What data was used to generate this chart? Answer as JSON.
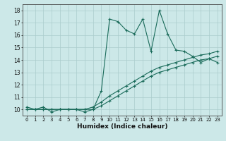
{
  "xlabel": "Humidex (Indice chaleur)",
  "xlim": [
    -0.5,
    23.5
  ],
  "ylim": [
    9.5,
    18.5
  ],
  "yticks": [
    10,
    11,
    12,
    13,
    14,
    15,
    16,
    17,
    18
  ],
  "xticks": [
    0,
    1,
    2,
    3,
    4,
    5,
    6,
    7,
    8,
    9,
    10,
    11,
    12,
    13,
    14,
    15,
    16,
    17,
    18,
    19,
    20,
    21,
    22,
    23
  ],
  "bg_color": "#cce8e8",
  "line_color": "#1a6b5a",
  "grid_color": "#aacccc",
  "series1_x": [
    0,
    1,
    2,
    3,
    4,
    5,
    6,
    7,
    8,
    9,
    10,
    11,
    12,
    13,
    14,
    15,
    16,
    17,
    18,
    19,
    20,
    21,
    22,
    23
  ],
  "series1_y": [
    10.2,
    10.0,
    10.2,
    9.8,
    10.0,
    10.0,
    10.0,
    9.8,
    10.0,
    11.5,
    17.3,
    17.1,
    16.4,
    16.1,
    17.3,
    14.7,
    18.0,
    16.1,
    14.8,
    14.7,
    14.3,
    13.8,
    14.1,
    13.8
  ],
  "series2_x": [
    0,
    1,
    2,
    3,
    4,
    5,
    6,
    7,
    8,
    9,
    10,
    11,
    12,
    13,
    14,
    15,
    16,
    17,
    18,
    19,
    20,
    21,
    22,
    23
  ],
  "series2_y": [
    10.0,
    10.0,
    10.0,
    10.0,
    10.0,
    10.0,
    10.0,
    10.0,
    10.2,
    10.6,
    11.1,
    11.5,
    11.9,
    12.3,
    12.7,
    13.1,
    13.4,
    13.6,
    13.8,
    14.0,
    14.2,
    14.4,
    14.5,
    14.7
  ],
  "series3_x": [
    0,
    1,
    2,
    3,
    4,
    5,
    6,
    7,
    8,
    9,
    10,
    11,
    12,
    13,
    14,
    15,
    16,
    17,
    18,
    19,
    20,
    21,
    22,
    23
  ],
  "series3_y": [
    10.0,
    10.0,
    10.0,
    10.0,
    10.0,
    10.0,
    10.0,
    10.0,
    10.0,
    10.3,
    10.7,
    11.1,
    11.5,
    11.9,
    12.3,
    12.7,
    13.0,
    13.2,
    13.4,
    13.6,
    13.8,
    14.0,
    14.1,
    14.3
  ]
}
